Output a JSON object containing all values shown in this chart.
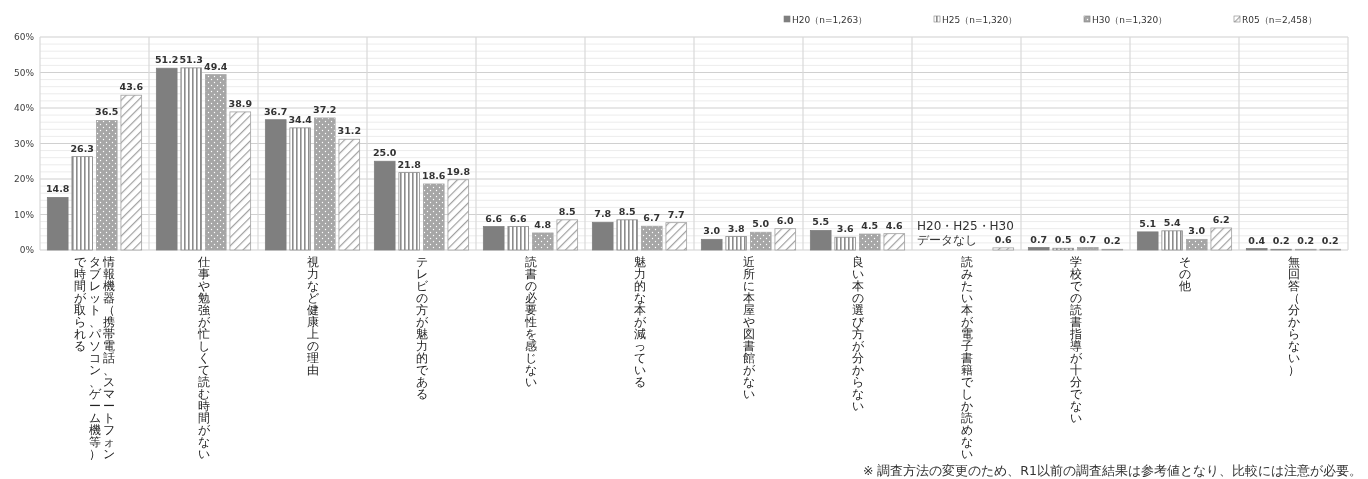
{
  "chart_data": {
    "type": "bar",
    "categories": [
      "情報機器（携帯電話、スマートフォンタブレット、パソコン、ゲーム機等）で時間が取られる",
      "仕事や勉強が忙しくて読む時間がない",
      "視力など健康上の理由",
      "テレビの方が魅力的である",
      "読書の必要性を感じない",
      "魅力的な本が減っている",
      "近所に本屋や図書館がない",
      "良い本の選び方が分からない",
      "読みたい本が電子書籍でしか読めない",
      "学校での読書指導が十分でない",
      "その他",
      "無回答（分からない）"
    ],
    "series": [
      {
        "name": "H20（n=1,263）",
        "color": "#7f7f7f",
        "values": [
          14.8,
          51.2,
          36.7,
          25.0,
          6.6,
          7.8,
          3.0,
          5.5,
          null,
          0.7,
          5.1,
          0.4
        ],
        "value_labels": [
          "14.8",
          "51.2",
          "36.7",
          "25.0",
          "6.6",
          "7.8",
          "3.0",
          "5.5",
          null,
          "0.7",
          "5.1",
          "0.4"
        ]
      },
      {
        "name": "H25（n=1,320）",
        "color": "#8c8c8c",
        "values": [
          26.3,
          51.3,
          34.4,
          21.8,
          6.6,
          8.5,
          3.8,
          3.6,
          null,
          0.5,
          5.4,
          0.2
        ],
        "value_labels": [
          "26.3",
          "51.3",
          "34.4",
          "21.8",
          "6.6",
          "8.5",
          "3.8",
          "3.6",
          null,
          "0.5",
          "5.4",
          "0.2"
        ]
      },
      {
        "name": "H30（n=1,320）",
        "color": "#a6a6a6",
        "values": [
          36.5,
          49.4,
          37.2,
          18.6,
          4.8,
          6.7,
          5.0,
          4.5,
          null,
          0.7,
          3.0,
          0.2
        ],
        "value_labels": [
          "36.5",
          "49.4",
          "37.2",
          "18.6",
          "4.8",
          "6.7",
          "5.0",
          "4.5",
          null,
          "0.7",
          "3.0",
          "0.2"
        ]
      },
      {
        "name": "R05（n=2,458）",
        "color": "#a0a0a0",
        "values": [
          43.6,
          38.9,
          31.2,
          19.8,
          8.5,
          7.7,
          6.0,
          4.6,
          0.6,
          0.2,
          6.2,
          0.2
        ],
        "value_labels": [
          "43.6",
          "38.9",
          "31.2",
          "19.8",
          "8.5",
          "7.7",
          "6.0",
          "4.6",
          "0.6",
          "0.2",
          "6.2",
          "0.2"
        ]
      }
    ],
    "ylim": [
      0,
      60
    ],
    "yticks": [
      {
        "value": 0,
        "label": "0%"
      },
      {
        "value": 2,
        "label": null
      },
      {
        "value": 4,
        "label": null
      },
      {
        "value": 6,
        "label": null
      },
      {
        "value": 8,
        "label": null
      },
      {
        "value": 10,
        "label": "10%"
      },
      {
        "value": 12,
        "label": null
      },
      {
        "value": 14,
        "label": null
      },
      {
        "value": 16,
        "label": null
      },
      {
        "value": 18,
        "label": null
      },
      {
        "value": 20,
        "label": "20%"
      },
      {
        "value": 22,
        "label": null
      },
      {
        "value": 24,
        "label": null
      },
      {
        "value": 26,
        "label": null
      },
      {
        "value": 28,
        "label": null
      },
      {
        "value": 30,
        "label": "30%"
      },
      {
        "value": 32,
        "label": null
      },
      {
        "value": 34,
        "label": null
      },
      {
        "value": 36,
        "label": null
      },
      {
        "value": 38,
        "label": null
      },
      {
        "value": 40,
        "label": "40%"
      },
      {
        "value": 42,
        "label": null
      },
      {
        "value": 44,
        "label": null
      },
      {
        "value": 46,
        "label": null
      },
      {
        "value": 48,
        "label": null
      },
      {
        "value": 50,
        "label": "50%"
      },
      {
        "value": 52,
        "label": null
      },
      {
        "value": 54,
        "label": null
      },
      {
        "value": 56,
        "label": null
      },
      {
        "value": 58,
        "label": null
      },
      {
        "value": 60,
        "label": "60%"
      }
    ],
    "grid": true,
    "legend": "top right",
    "annotations": [
      "H20・H25・H30\nデータなし",
      "※ 調査方法の変更のため、R1以前の調査結果は参考値となり、比較には注意が必要。"
    ]
  }
}
